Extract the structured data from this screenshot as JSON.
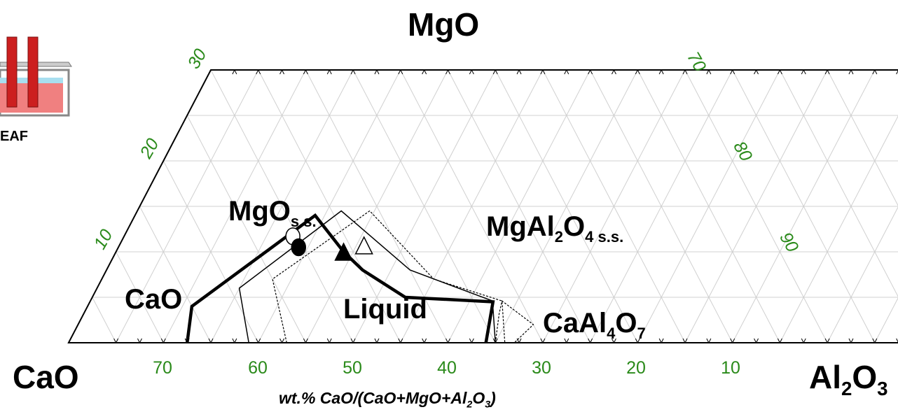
{
  "title": "",
  "corners": {
    "top": "MgO",
    "left": "CaO",
    "right_base": "Al",
    "right_sub": "2",
    "right_end": "O",
    "right_sub2": "3"
  },
  "axis": {
    "xlabel_part1": "wt.% CaO/(CaO+MgO+Al",
    "xlabel_sub1": "2",
    "xlabel_part2": "O",
    "xlabel_sub2": "3",
    "xlabel_end": ")"
  },
  "bottom_ticks": [
    "70",
    "60",
    "50",
    "40",
    "30",
    "20",
    "10"
  ],
  "left_ticks": [
    "30",
    "20",
    "10"
  ],
  "right_ticks": [
    "70",
    "80",
    "90"
  ],
  "eaf": {
    "label": "EAF"
  },
  "regions": {
    "mgo_ss": {
      "main": "MgO",
      "sub": "s.s."
    },
    "spinel": {
      "main1": "MgAl",
      "sub1": "2",
      "main2": "O",
      "sub2": "4 s.s."
    },
    "cao": {
      "main": "CaO"
    },
    "liquid": {
      "main": "Liquid"
    },
    "ca_al": {
      "main1": "CaAl",
      "sub1": "4",
      "main2": "O",
      "sub2": "7"
    }
  },
  "chart_data": {
    "type": "scatter",
    "system": "CaO-MgO-Al2O3 ternary (wt.%)",
    "xlabel": "wt.% CaO/(CaO+MgO+Al2O3)",
    "ranges": {
      "CaO": [
        0,
        80
      ],
      "MgO": [
        0,
        30
      ],
      "Al2O3": [
        20,
        100
      ]
    },
    "grid": true,
    "series": [
      {
        "style": "thick-solid",
        "points": [
          [
            67.5,
            0
          ],
          [
            65,
            4
          ],
          [
            47,
            14
          ],
          [
            46,
            10
          ],
          [
            45,
            8
          ],
          [
            42,
            5
          ],
          [
            33,
            4.5
          ],
          [
            36,
            0
          ]
        ]
      },
      {
        "style": "thin-solid",
        "points": [
          [
            61,
            0
          ],
          [
            59,
            6
          ],
          [
            44,
            14.5
          ],
          [
            40,
            8
          ],
          [
            33,
            4.6
          ],
          [
            35,
            0
          ]
        ]
      },
      {
        "style": "dotted",
        "points": [
          [
            57,
            0
          ],
          [
            55,
            7
          ],
          [
            41,
            14.5
          ],
          [
            38,
            7
          ],
          [
            32,
            4.6
          ],
          [
            34,
            0
          ]
        ]
      },
      {
        "style": "dotted",
        "points": [
          [
            35,
            0
          ],
          [
            33,
            3.2
          ],
          [
            32,
            4.6
          ],
          [
            30,
            2
          ],
          [
            33,
            0
          ]
        ]
      }
    ],
    "markers": [
      {
        "shape": "circle-open",
        "cao": 50.5,
        "mgo": 11.7
      },
      {
        "shape": "circle-filled",
        "cao": 50.5,
        "mgo": 10.5
      },
      {
        "shape": "triangle-filled",
        "cao": 46,
        "mgo": 10
      },
      {
        "shape": "triangle-open",
        "cao": 43.5,
        "mgo": 10.7
      }
    ]
  }
}
